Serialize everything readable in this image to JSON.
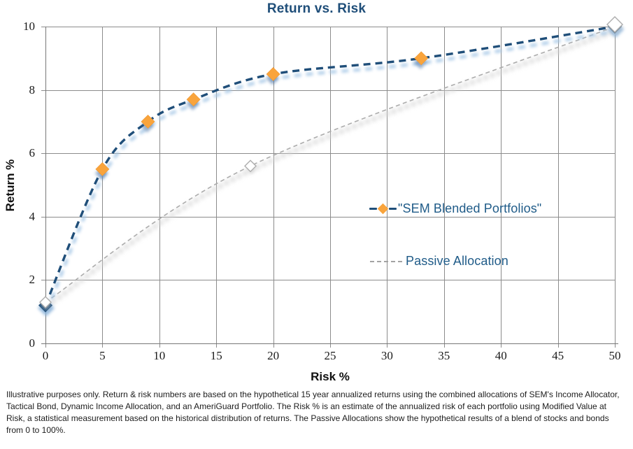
{
  "chart_data": {
    "type": "line",
    "title": "Return vs. Risk",
    "xlabel": "Risk %",
    "ylabel": "Return %",
    "xlim": [
      0,
      50
    ],
    "ylim": [
      0,
      10
    ],
    "x_ticks": [
      0,
      5,
      10,
      15,
      20,
      25,
      30,
      35,
      40,
      45,
      50
    ],
    "y_ticks": [
      0,
      2,
      4,
      6,
      8,
      10
    ],
    "grid": true,
    "legend_position": "middle-right",
    "series": [
      {
        "name": "\"SEM Blended Portfolios\"",
        "line_style": "dashed",
        "line_color": "#1F4E79",
        "glow_color": "#A6C7E6",
        "marker": "diamond",
        "marker_color": "#F9A43C",
        "endpoint_marker_color": "#1F4E79",
        "points": [
          [
            0,
            1.2
          ],
          [
            5,
            5.5
          ],
          [
            9,
            7.0
          ],
          [
            13,
            7.7
          ],
          [
            20,
            8.5
          ],
          [
            33,
            9.0
          ],
          [
            50,
            10.0
          ]
        ]
      },
      {
        "name": "Passive Allocation",
        "line_style": "dashed",
        "line_color": "#ACACAC",
        "glow_color": "#D6D6D6",
        "marker": "diamond-hollow",
        "marker_fill": "#FFFFFF",
        "marker_border": "#ADADAD",
        "points": [
          [
            0,
            1.3
          ],
          [
            18,
            5.6
          ],
          [
            50,
            10.0
          ]
        ]
      }
    ]
  },
  "legend": {
    "items": [
      {
        "label": "\"SEM Blended Portfolios\""
      },
      {
        "label": "Passive Allocation"
      }
    ],
    "text_color": "#1F5B88"
  },
  "footnote": "Illustrative purposes only. Return & risk numbers are based on the hypothetical 15 year annualized returns using the combined allocations of SEM's Income Allocator, Tactical Bond, Dynamic Income Allocation, and an AmeriGuard Portfolio. The Risk % is an estimate of the annualized risk of each portfolio using Modified Value at Risk, a statistical measurement based on the historical distribution of returns. The Passive Allocations show the hypothetical results of a blend of stocks and bonds from 0 to 100%.",
  "colors": {
    "title_text": "#1F4E79",
    "grid_line": "#8C8C8C",
    "axis_line": "#777777",
    "tick_text": "#1a1a1a"
  }
}
